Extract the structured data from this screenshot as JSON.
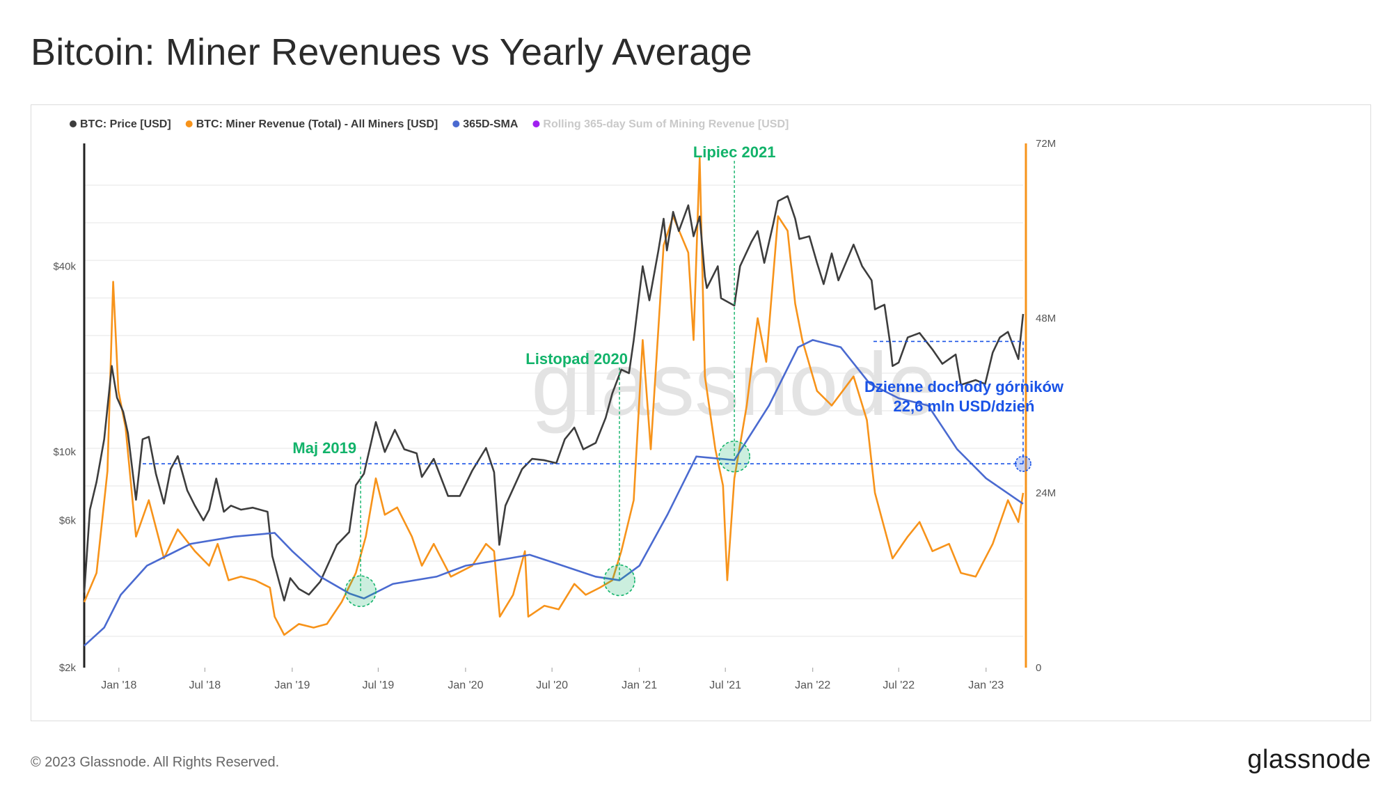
{
  "header": {
    "title": "Bitcoin: Miner Revenues vs Yearly Average"
  },
  "footer": {
    "copyright": "© 2023 Glassnode. All Rights Reserved.",
    "logo": "glassnode"
  },
  "watermark": "glassnode",
  "colors": {
    "price": "#3d3d3d",
    "revenue": "#f7931a",
    "sma": "#4a6ad0",
    "rolling": "#a020f0",
    "annotation_green": "#12b36a",
    "annotation_blue": "#1a53e6",
    "grid": "#e6e6e6"
  },
  "chart_data": {
    "type": "line",
    "legend": [
      {
        "name": "BTC: Price [USD]",
        "color": "#3d3d3d",
        "muted": false
      },
      {
        "name": "BTC: Miner Revenue (Total) - All Miners [USD]",
        "color": "#f7931a",
        "muted": false
      },
      {
        "name": "365D-SMA",
        "color": "#4a6ad0",
        "muted": false
      },
      {
        "name": "Rolling 365-day Sum of Mining Revenue [USD]",
        "color": "#a020f0",
        "muted": true
      }
    ],
    "x_ticks": [
      "Jan '18",
      "Jul '18",
      "Jan '19",
      "Jul '19",
      "Jan '20",
      "Jul '20",
      "Jan '21",
      "Jul '21",
      "Jan '22",
      "Jul '22",
      "Jan '23"
    ],
    "x_tick_dates": [
      "2018-01-01",
      "2018-07-01",
      "2019-01-01",
      "2019-07-01",
      "2020-01-01",
      "2020-07-01",
      "2021-01-01",
      "2021-07-01",
      "2022-01-01",
      "2022-07-01",
      "2023-01-01"
    ],
    "x_range": [
      "2017-10-20",
      "2023-03-20"
    ],
    "y_left": {
      "scale": "log",
      "range": [
        2000,
        100000
      ],
      "ticks": [
        {
          "label": "$2k",
          "value": 2000
        },
        {
          "label": "$6k",
          "value": 6000
        },
        {
          "label": "$10k",
          "value": 10000
        },
        {
          "label": "$40k",
          "value": 40000
        }
      ]
    },
    "y_right": {
      "scale": "linear",
      "range": [
        0,
        72000000
      ],
      "ticks": [
        {
          "label": "0",
          "value": 0
        },
        {
          "label": "24M",
          "value": 24000000
        },
        {
          "label": "48M",
          "value": 48000000
        },
        {
          "label": "72M",
          "value": 72000000
        }
      ]
    },
    "series": [
      {
        "name": "BTC: Price [USD]",
        "axis": "left",
        "points": [
          [
            "2017-10-20",
            3500
          ],
          [
            "2017-11-01",
            6500
          ],
          [
            "2017-11-15",
            8000
          ],
          [
            "2017-12-01",
            11000
          ],
          [
            "2017-12-17",
            19000
          ],
          [
            "2017-12-28",
            15000
          ],
          [
            "2018-01-10",
            13500
          ],
          [
            "2018-01-20",
            11500
          ],
          [
            "2018-02-06",
            7000
          ],
          [
            "2018-02-20",
            11000
          ],
          [
            "2018-03-05",
            11200
          ],
          [
            "2018-03-20",
            8500
          ],
          [
            "2018-04-06",
            6800
          ],
          [
            "2018-04-20",
            8800
          ],
          [
            "2018-05-05",
            9700
          ],
          [
            "2018-05-25",
            7500
          ],
          [
            "2018-06-10",
            6700
          ],
          [
            "2018-06-28",
            6000
          ],
          [
            "2018-07-10",
            6500
          ],
          [
            "2018-07-25",
            8200
          ],
          [
            "2018-08-10",
            6400
          ],
          [
            "2018-08-25",
            6700
          ],
          [
            "2018-09-15",
            6500
          ],
          [
            "2018-10-10",
            6600
          ],
          [
            "2018-11-10",
            6400
          ],
          [
            "2018-11-20",
            4600
          ],
          [
            "2018-12-15",
            3300
          ],
          [
            "2018-12-28",
            3900
          ],
          [
            "2019-01-15",
            3600
          ],
          [
            "2019-02-05",
            3450
          ],
          [
            "2019-03-01",
            3800
          ],
          [
            "2019-04-05",
            5000
          ],
          [
            "2019-05-01",
            5500
          ],
          [
            "2019-05-15",
            7800
          ],
          [
            "2019-06-01",
            8500
          ],
          [
            "2019-06-26",
            12500
          ],
          [
            "2019-07-15",
            10000
          ],
          [
            "2019-08-05",
            11800
          ],
          [
            "2019-08-25",
            10200
          ],
          [
            "2019-09-20",
            9900
          ],
          [
            "2019-10-01",
            8300
          ],
          [
            "2019-10-26",
            9500
          ],
          [
            "2019-11-25",
            7200
          ],
          [
            "2019-12-20",
            7200
          ],
          [
            "2020-01-15",
            8700
          ],
          [
            "2020-02-13",
            10300
          ],
          [
            "2020-03-01",
            8600
          ],
          [
            "2020-03-12",
            5000
          ],
          [
            "2020-03-25",
            6700
          ],
          [
            "2020-04-29",
            8800
          ],
          [
            "2020-05-20",
            9500
          ],
          [
            "2020-06-15",
            9400
          ],
          [
            "2020-07-10",
            9200
          ],
          [
            "2020-07-28",
            11000
          ],
          [
            "2020-08-17",
            12000
          ],
          [
            "2020-09-05",
            10200
          ],
          [
            "2020-10-01",
            10700
          ],
          [
            "2020-10-22",
            12900
          ],
          [
            "2020-11-05",
            15500
          ],
          [
            "2020-11-24",
            18500
          ],
          [
            "2020-12-10",
            18000
          ],
          [
            "2020-12-20",
            23000
          ],
          [
            "2021-01-08",
            40000
          ],
          [
            "2021-01-22",
            31000
          ],
          [
            "2021-02-10",
            45000
          ],
          [
            "2021-02-21",
            57000
          ],
          [
            "2021-02-28",
            45000
          ],
          [
            "2021-03-13",
            60000
          ],
          [
            "2021-03-25",
            52000
          ],
          [
            "2021-04-14",
            63000
          ],
          [
            "2021-04-25",
            50000
          ],
          [
            "2021-05-08",
            58000
          ],
          [
            "2021-05-19",
            37000
          ],
          [
            "2021-05-23",
            34000
          ],
          [
            "2021-06-15",
            40000
          ],
          [
            "2021-06-22",
            31500
          ],
          [
            "2021-07-20",
            29800
          ],
          [
            "2021-08-01",
            40000
          ],
          [
            "2021-08-25",
            48000
          ],
          [
            "2021-09-07",
            52000
          ],
          [
            "2021-09-21",
            41000
          ],
          [
            "2021-10-10",
            55000
          ],
          [
            "2021-10-20",
            65000
          ],
          [
            "2021-11-09",
            67500
          ],
          [
            "2021-11-25",
            57000
          ],
          [
            "2021-12-04",
            49000
          ],
          [
            "2021-12-25",
            50000
          ],
          [
            "2022-01-10",
            41000
          ],
          [
            "2022-01-24",
            35000
          ],
          [
            "2022-02-10",
            44000
          ],
          [
            "2022-02-24",
            36000
          ],
          [
            "2022-03-28",
            47000
          ],
          [
            "2022-04-15",
            40000
          ],
          [
            "2022-05-05",
            36000
          ],
          [
            "2022-05-12",
            29000
          ],
          [
            "2022-06-01",
            30000
          ],
          [
            "2022-06-13",
            22500
          ],
          [
            "2022-06-18",
            19000
          ],
          [
            "2022-07-01",
            19500
          ],
          [
            "2022-07-20",
            23500
          ],
          [
            "2022-08-14",
            24300
          ],
          [
            "2022-09-10",
            21500
          ],
          [
            "2022-10-01",
            19300
          ],
          [
            "2022-10-29",
            20700
          ],
          [
            "2022-11-09",
            16500
          ],
          [
            "2022-12-10",
            17100
          ],
          [
            "2022-12-30",
            16600
          ],
          [
            "2023-01-15",
            21000
          ],
          [
            "2023-01-30",
            23500
          ],
          [
            "2023-02-16",
            24500
          ],
          [
            "2023-03-10",
            20000
          ],
          [
            "2023-03-20",
            28000
          ]
        ]
      },
      {
        "name": "BTC: Miner Revenue (Total) - All Miners [USD]",
        "axis": "right",
        "points": [
          [
            "2017-10-20",
            9000000
          ],
          [
            "2017-11-15",
            13000000
          ],
          [
            "2017-12-08",
            27000000
          ],
          [
            "2017-12-20",
            53000000
          ],
          [
            "2017-12-31",
            38000000
          ],
          [
            "2018-01-15",
            33000000
          ],
          [
            "2018-02-06",
            18000000
          ],
          [
            "2018-03-05",
            23000000
          ],
          [
            "2018-04-06",
            15000000
          ],
          [
            "2018-05-05",
            19000000
          ],
          [
            "2018-06-10",
            16000000
          ],
          [
            "2018-07-10",
            14000000
          ],
          [
            "2018-07-28",
            17000000
          ],
          [
            "2018-08-20",
            12000000
          ],
          [
            "2018-09-15",
            12500000
          ],
          [
            "2018-10-15",
            12000000
          ],
          [
            "2018-11-15",
            11000000
          ],
          [
            "2018-11-25",
            7000000
          ],
          [
            "2018-12-15",
            4500000
          ],
          [
            "2019-01-15",
            6000000
          ],
          [
            "2019-02-15",
            5500000
          ],
          [
            "2019-03-15",
            6000000
          ],
          [
            "2019-04-15",
            9000000
          ],
          [
            "2019-05-15",
            13000000
          ],
          [
            "2019-06-05",
            18000000
          ],
          [
            "2019-06-26",
            26000000
          ],
          [
            "2019-07-15",
            21000000
          ],
          [
            "2019-08-10",
            22000000
          ],
          [
            "2019-09-10",
            18000000
          ],
          [
            "2019-10-01",
            14000000
          ],
          [
            "2019-10-26",
            17000000
          ],
          [
            "2019-12-01",
            12500000
          ],
          [
            "2020-01-15",
            14000000
          ],
          [
            "2020-02-13",
            17000000
          ],
          [
            "2020-03-01",
            16000000
          ],
          [
            "2020-03-13",
            7000000
          ],
          [
            "2020-04-10",
            10000000
          ],
          [
            "2020-05-05",
            16000000
          ],
          [
            "2020-05-12",
            7000000
          ],
          [
            "2020-06-15",
            8500000
          ],
          [
            "2020-07-15",
            8000000
          ],
          [
            "2020-08-17",
            11500000
          ],
          [
            "2020-09-10",
            10000000
          ],
          [
            "2020-10-10",
            11000000
          ],
          [
            "2020-11-05",
            12000000
          ],
          [
            "2020-11-24",
            16000000
          ],
          [
            "2020-12-20",
            23000000
          ],
          [
            "2021-01-08",
            45000000
          ],
          [
            "2021-01-25",
            30000000
          ],
          [
            "2021-02-21",
            58000000
          ],
          [
            "2021-03-13",
            62000000
          ],
          [
            "2021-04-14",
            57000000
          ],
          [
            "2021-04-25",
            45000000
          ],
          [
            "2021-05-08",
            70000000
          ],
          [
            "2021-05-19",
            40000000
          ],
          [
            "2021-06-10",
            30000000
          ],
          [
            "2021-06-26",
            25000000
          ],
          [
            "2021-07-05",
            12000000
          ],
          [
            "2021-07-20",
            26000000
          ],
          [
            "2021-08-15",
            36000000
          ],
          [
            "2021-09-07",
            48000000
          ],
          [
            "2021-09-25",
            42000000
          ],
          [
            "2021-10-20",
            62000000
          ],
          [
            "2021-11-09",
            60000000
          ],
          [
            "2021-11-25",
            50000000
          ],
          [
            "2021-12-10",
            45000000
          ],
          [
            "2022-01-10",
            38000000
          ],
          [
            "2022-02-10",
            36000000
          ],
          [
            "2022-03-28",
            40000000
          ],
          [
            "2022-04-25",
            34000000
          ],
          [
            "2022-05-12",
            24000000
          ],
          [
            "2022-06-18",
            15000000
          ],
          [
            "2022-07-20",
            18000000
          ],
          [
            "2022-08-14",
            20000000
          ],
          [
            "2022-09-10",
            16000000
          ],
          [
            "2022-10-15",
            17000000
          ],
          [
            "2022-11-09",
            13000000
          ],
          [
            "2022-12-10",
            12500000
          ],
          [
            "2023-01-15",
            17000000
          ],
          [
            "2023-02-16",
            23000000
          ],
          [
            "2023-03-10",
            20000000
          ],
          [
            "2023-03-20",
            24000000
          ]
        ]
      },
      {
        "name": "365D-SMA",
        "axis": "right",
        "points": [
          [
            "2017-10-20",
            3000000
          ],
          [
            "2017-12-01",
            5500000
          ],
          [
            "2018-01-05",
            10000000
          ],
          [
            "2018-03-01",
            14000000
          ],
          [
            "2018-06-01",
            17000000
          ],
          [
            "2018-09-01",
            18000000
          ],
          [
            "2018-11-25",
            18500000
          ],
          [
            "2019-01-01",
            16000000
          ],
          [
            "2019-03-01",
            12500000
          ],
          [
            "2019-05-01",
            10200000
          ],
          [
            "2019-06-01",
            9500000
          ],
          [
            "2019-08-01",
            11500000
          ],
          [
            "2019-11-01",
            12500000
          ],
          [
            "2020-01-01",
            14000000
          ],
          [
            "2020-04-01",
            15000000
          ],
          [
            "2020-05-15",
            15500000
          ],
          [
            "2020-07-01",
            14500000
          ],
          [
            "2020-10-01",
            12500000
          ],
          [
            "2020-11-20",
            12000000
          ],
          [
            "2021-01-01",
            14000000
          ],
          [
            "2021-03-01",
            21000000
          ],
          [
            "2021-05-01",
            29000000
          ],
          [
            "2021-07-20",
            28500000
          ],
          [
            "2021-10-01",
            36000000
          ],
          [
            "2021-12-01",
            44000000
          ],
          [
            "2022-01-01",
            45000000
          ],
          [
            "2022-03-01",
            44000000
          ],
          [
            "2022-05-01",
            39000000
          ],
          [
            "2022-07-01",
            37000000
          ],
          [
            "2022-09-01",
            36000000
          ],
          [
            "2022-11-01",
            30000000
          ],
          [
            "2023-01-01",
            26000000
          ],
          [
            "2023-03-20",
            22500000
          ]
        ]
      }
    ],
    "annotations": [
      {
        "text": "Maj 2019",
        "date": "2019-05-25",
        "value_usd": 10500000
      },
      {
        "text": "Listopad 2020",
        "date": "2020-11-20",
        "value_usd": 12000000
      },
      {
        "text": "Lipiec 2021",
        "date": "2021-07-20",
        "value_usd": 29000000
      },
      {
        "text": "Dzienne dochody górników",
        "date": "2023-03-20",
        "value_usd": 44800000
      },
      {
        "text": "22,6 mln USD/dzień",
        "date": "2023-03-20",
        "value_usd": 28000000
      }
    ],
    "reference_line": {
      "value_usd": 28000000,
      "style": "dashed"
    }
  }
}
